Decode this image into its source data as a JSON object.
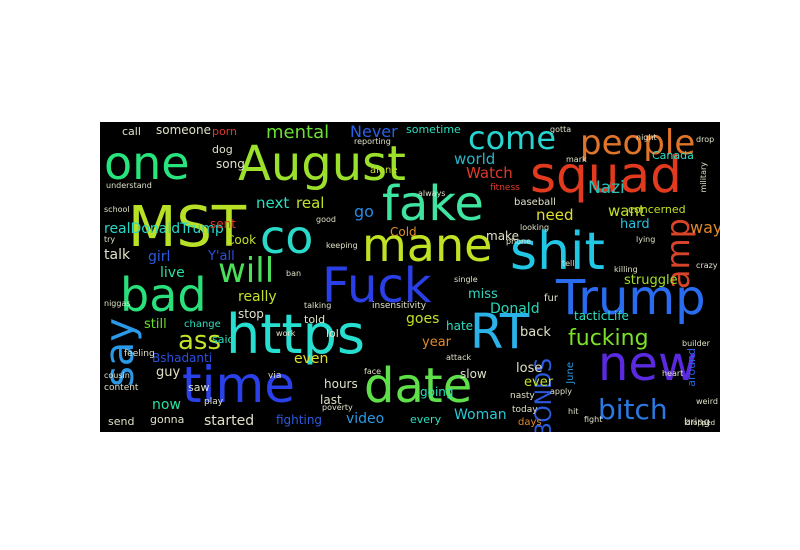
{
  "cloud": {
    "background": "#000000",
    "words": [
      {
        "text": "August",
        "color": "#9be02a"
      },
      {
        "text": "squad",
        "color": "#e23a1e"
      },
      {
        "text": "one",
        "color": "#27e57c"
      },
      {
        "text": "fake",
        "color": "#3ee4a0"
      },
      {
        "text": "MST",
        "color": "#b8e026"
      },
      {
        "text": "co",
        "color": "#2ad9c8"
      },
      {
        "text": "mane",
        "color": "#c0e225"
      },
      {
        "text": "shit",
        "color": "#22c7e6"
      },
      {
        "text": "Fuck",
        "color": "#2a3fe6"
      },
      {
        "text": "bad",
        "color": "#2ae07a"
      },
      {
        "text": "Trump",
        "color": "#2a6cf0"
      },
      {
        "text": "https",
        "color": "#27dfd0"
      },
      {
        "text": "RT",
        "color": "#2bb2e8"
      },
      {
        "text": "time",
        "color": "#2a40e8"
      },
      {
        "text": "date",
        "color": "#5fe04a"
      },
      {
        "text": "new",
        "color": "#5a2ae0"
      },
      {
        "text": "say",
        "color": "#2a9ae8"
      },
      {
        "text": "will",
        "color": "#4ae05a"
      },
      {
        "text": "people",
        "color": "#e0752a"
      },
      {
        "text": "come",
        "color": "#28d4d0"
      },
      {
        "text": "amp",
        "color": "#d8442a"
      },
      {
        "text": "bitch",
        "color": "#2a78e0"
      },
      {
        "text": "fucking",
        "color": "#7ae02a"
      },
      {
        "text": "ass",
        "color": "#c0e22a"
      },
      {
        "text": "BONDS",
        "color": "#2a5ae0"
      },
      {
        "text": "Nazi",
        "color": "#28c0b8"
      },
      {
        "text": "Watch",
        "color": "#e0382a"
      },
      {
        "text": "world",
        "color": "#27b7c8"
      },
      {
        "text": "mental",
        "color": "#6ae036"
      },
      {
        "text": "Never",
        "color": "#2a60e8"
      },
      {
        "text": "next",
        "color": "#2ae0c0"
      },
      {
        "text": "real",
        "color": "#c0e02a"
      },
      {
        "text": "go",
        "color": "#2a8ae0"
      },
      {
        "text": "need",
        "color": "#e0e02a"
      },
      {
        "text": "want",
        "color": "#c0e028"
      },
      {
        "text": "way",
        "color": "#e08a2a"
      },
      {
        "text": "realDonaldTrump",
        "color": "#27d8c8"
      },
      {
        "text": "Donald",
        "color": "#27d8b8"
      },
      {
        "text": "miss",
        "color": "#30d8c0"
      },
      {
        "text": "hard",
        "color": "#2ac0e0"
      },
      {
        "text": "concerned",
        "color": "#c0e028"
      },
      {
        "text": "talk",
        "color": "#e0e0c8"
      },
      {
        "text": "girl",
        "color": "#2a5ae0"
      },
      {
        "text": "Y'all",
        "color": "#2a50e0"
      },
      {
        "text": "live",
        "color": "#2ae0a0"
      },
      {
        "text": "really",
        "color": "#c0e02a"
      },
      {
        "text": "struggle",
        "color": "#a0e02a"
      },
      {
        "text": "tacticLife",
        "color": "#2ae0c0"
      },
      {
        "text": "goes",
        "color": "#c0e028"
      },
      {
        "text": "year",
        "color": "#e08a2a"
      },
      {
        "text": "hate",
        "color": "#2ae0c0"
      },
      {
        "text": "Woman",
        "color": "#27c8d8"
      },
      {
        "text": "video",
        "color": "#2a9ae0"
      },
      {
        "text": "started",
        "color": "#e0e0c8"
      },
      {
        "text": "fighting",
        "color": "#2a5ae0"
      },
      {
        "text": "guy",
        "color": "#e0e0c8"
      },
      {
        "text": "now",
        "color": "#2ae0a0"
      },
      {
        "text": "still",
        "color": "#6ae02a"
      },
      {
        "text": "even",
        "color": "#e0e02a"
      },
      {
        "text": "hours",
        "color": "#e0e0c8"
      },
      {
        "text": "last",
        "color": "#e0e0c8"
      },
      {
        "text": "lose",
        "color": "#e0e0c8"
      },
      {
        "text": "slow",
        "color": "#e0e0c8"
      },
      {
        "text": "ever",
        "color": "#c0e02a"
      },
      {
        "text": "back",
        "color": "#e0e0c8"
      },
      {
        "text": "make",
        "color": "#e0e0c8"
      },
      {
        "text": "every",
        "color": "#2ae0c0"
      },
      {
        "text": "going",
        "color": "#2ae0c0"
      },
      {
        "text": "said",
        "color": "#2ae0c0"
      },
      {
        "text": "stop",
        "color": "#e0e0c8"
      },
      {
        "text": "told",
        "color": "#e0e0c8"
      },
      {
        "text": "lol",
        "color": "#e0e0c8"
      },
      {
        "text": "Cook",
        "color": "#c0e02a"
      },
      {
        "text": "sent",
        "color": "#e0382a"
      },
      {
        "text": "Cold",
        "color": "#e08a2a"
      },
      {
        "text": "dog",
        "color": "#e0e0c8"
      },
      {
        "text": "song",
        "color": "#e0e0c8"
      },
      {
        "text": "sometime",
        "color": "#2ae0c0"
      },
      {
        "text": "someone",
        "color": "#e0e0c8"
      },
      {
        "text": "porn",
        "color": "#e0382a"
      },
      {
        "text": "call",
        "color": "#e0e0c8"
      },
      {
        "text": "Canada",
        "color": "#2ae0c0"
      },
      {
        "text": "baseball",
        "color": "#e0e0c8"
      },
      {
        "text": "alone",
        "color": "#c0e02a"
      },
      {
        "text": "Bshadanti",
        "color": "#2a50e0"
      },
      {
        "text": "saw",
        "color": "#e0e0c8"
      },
      {
        "text": "gonna",
        "color": "#e0e0c8"
      },
      {
        "text": "send",
        "color": "#e0e0c8"
      },
      {
        "text": "around",
        "color": "#2a60e0"
      },
      {
        "text": "June",
        "color": "#2a9ae0"
      },
      {
        "text": "change",
        "color": "#2ae0c0"
      },
      {
        "text": "play",
        "color": "#e0e0c8"
      },
      {
        "text": "nasty",
        "color": "#e0e0c8"
      },
      {
        "text": "today",
        "color": "#e0e0c8"
      },
      {
        "text": "days",
        "color": "#e08a2a"
      },
      {
        "text": "bring",
        "color": "#e0e0c8"
      },
      {
        "text": "fur",
        "color": "#e0e0c8"
      },
      {
        "text": "via",
        "color": "#e0e0c8"
      },
      {
        "text": "feeling",
        "color": "#e0e0c8"
      },
      {
        "text": "content",
        "color": "#e0e0c8"
      },
      {
        "text": "attack",
        "color": "#e0e0c8"
      },
      {
        "text": "phone",
        "color": "#e0e0c8"
      },
      {
        "text": "always",
        "color": "#e0e0c8"
      },
      {
        "text": "fitness",
        "color": "#e0382a"
      },
      {
        "text": "good",
        "color": "#e0e0c8"
      },
      {
        "text": "keeping",
        "color": "#e0e0c8"
      },
      {
        "text": "niggas",
        "color": "#e0e0c8"
      },
      {
        "text": "insensitivity",
        "color": "#e0e0c8"
      },
      {
        "text": "talking",
        "color": "#e0e0c8"
      },
      {
        "text": "poverty",
        "color": "#e0e0c8"
      },
      {
        "text": "face",
        "color": "#e0e0c8"
      },
      {
        "text": "hit",
        "color": "#e0e0c8"
      },
      {
        "text": "fight",
        "color": "#e0e0c8"
      },
      {
        "text": "weird",
        "color": "#e0e0c8"
      },
      {
        "text": "heart",
        "color": "#e0e0c8"
      },
      {
        "text": "single",
        "color": "#e0e0c8"
      },
      {
        "text": "understand",
        "color": "#e0e0c8"
      },
      {
        "text": "military",
        "color": "#e0e0c8"
      },
      {
        "text": "tell",
        "color": "#e0e0c8"
      },
      {
        "text": "killing",
        "color": "#e0e0c8"
      },
      {
        "text": "crazy",
        "color": "#e0e0c8"
      },
      {
        "text": "lying",
        "color": "#e0e0c8"
      },
      {
        "text": "ban",
        "color": "#e0e0c8"
      },
      {
        "text": "work",
        "color": "#e0e0c8"
      },
      {
        "text": "school",
        "color": "#e0e0c8"
      },
      {
        "text": "try",
        "color": "#e0e0c8"
      },
      {
        "text": "night",
        "color": "#e0e0c8"
      },
      {
        "text": "drop",
        "color": "#e0e0c8"
      },
      {
        "text": "looking",
        "color": "#e0e0c8"
      },
      {
        "text": "gotta",
        "color": "#e0e0c8"
      },
      {
        "text": "mark",
        "color": "#e0e0c8"
      },
      {
        "text": "reporting",
        "color": "#e0e0c8"
      },
      {
        "text": "apply",
        "color": "#e0e0c8"
      },
      {
        "text": "dropped",
        "color": "#e0e0c8"
      },
      {
        "text": "cousin",
        "color": "#e0e0c8"
      },
      {
        "text": "builder",
        "color": "#e0e0c8"
      }
    ]
  }
}
